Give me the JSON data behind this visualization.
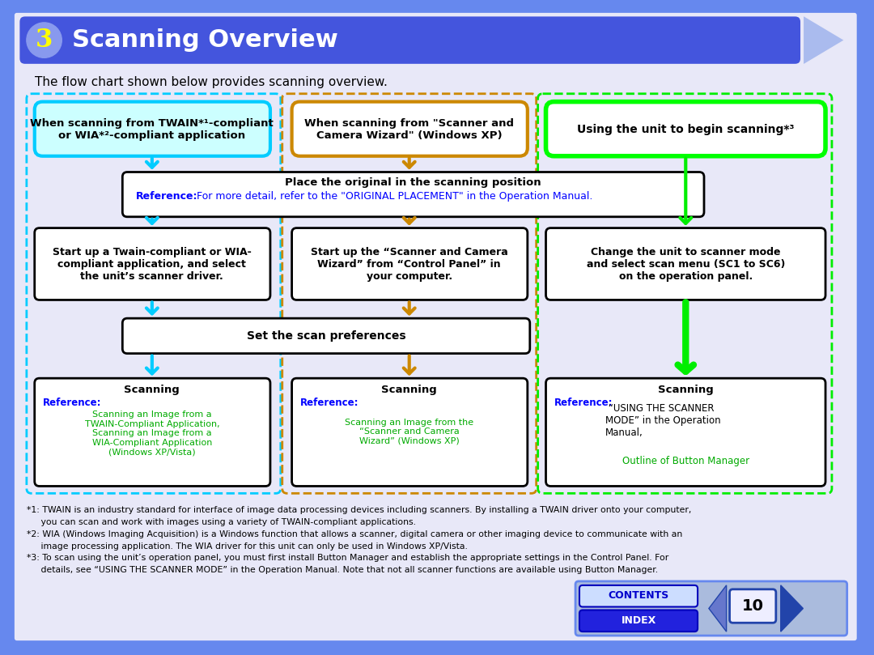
{
  "bg_color": "#6688ee",
  "page_bg": "#e8e8f8",
  "title_bar_color": "#4455dd",
  "title_text": "Scanning Overview",
  "title_number": "3",
  "title_number_color": "#ffff00",
  "title_text_color": "#ffffff",
  "subtitle": "The flow chart shown below provides scanning overview.",
  "subtitle_color": "#000000",
  "box1_text": "When scanning from TWAIN*¹-compliant\nor WIA*²-compliant application",
  "box1_border": "#00ccff",
  "box1_bg": "#ccffff",
  "box2_text": "When scanning from \"Scanner and\nCamera Wizard\" (Windows XP)",
  "box2_border": "#cc8800",
  "box2_bg": "#ffffff",
  "box3_text": "Using the unit to begin scanning*³",
  "box3_border": "#00ff00",
  "box3_bg": "#ffffff",
  "place_box_text1": "Place the original in the scanning position",
  "place_box_ref": "Reference:",
  "place_box_ref2": " For more detail, refer to the \"ORIGINAL PLACEMENT\" in the Operation Manual.",
  "place_box_border": "#000000",
  "place_box_bg": "#ffffff",
  "step1a_text": "Start up a Twain-compliant or WIA-\ncompliant application, and select\nthe unit’s scanner driver.",
  "step1a_border": "#000000",
  "step1a_bg": "#ffffff",
  "step2a_text": "Start up the “Scanner and Camera\nWizard” from “Control Panel” in\nyour computer.",
  "step2a_border": "#000000",
  "step2a_bg": "#ffffff",
  "step3a_text": "Change the unit to scanner mode\nand select scan menu (SC1 to SC6)\non the operation panel.",
  "step3a_border": "#000000",
  "step3a_bg": "#ffffff",
  "pref_box_text": "Set the scan preferences",
  "pref_box_border": "#000000",
  "pref_box_bg": "#ffffff",
  "scan1_title": "Scanning",
  "scan1_ref": "Reference:",
  "scan1_links": "Scanning an Image from a\nTWAIN-Compliant Application,\nScanning an Image from a\nWIA-Compliant Application\n(Windows XP/Vista)",
  "scan1_border": "#000000",
  "scan1_bg": "#ffffff",
  "scan2_title": "Scanning",
  "scan2_ref": "Reference:",
  "scan2_links": "Scanning an Image from the\n“Scanner and Camera\nWizard” (Windows XP)",
  "scan2_border": "#000000",
  "scan2_bg": "#ffffff",
  "scan3_title": "Scanning",
  "scan3_ref": "Reference:",
  "scan3_text": " “USING THE SCANNER\nMODE” in the Operation\nManual,",
  "scan3_link": "Outline of Button Manager",
  "scan3_border": "#000000",
  "scan3_bg": "#ffffff",
  "cyan_arrow": "#00ccff",
  "orange_arrow": "#cc8800",
  "green_arrow": "#00ee00",
  "footnote1": "*1: TWAIN is an industry standard for interface of image data processing devices including scanners. By installing a TWAIN driver onto your computer,",
  "footnote1b": "     you can scan and work with images using a variety of TWAIN-compliant applications.",
  "footnote2": "*2: WIA (Windows Imaging Acquisition) is a Windows function that allows a scanner, digital camera or other imaging device to communicate with an",
  "footnote2b": "     image processing application. The WIA driver for this unit can only be used in Windows XP/Vista.",
  "footnote3": "*3: To scan using the unit’s operation panel, you must first install Button Manager and establish the appropriate settings in the Control Panel. For",
  "footnote3b": "     details, see “USING THE SCANNER MODE” in the Operation Manual. Note that not all scanner functions are available using Button Manager.",
  "contents_text": "CONTENTS",
  "index_text": "INDEX",
  "page_number": "10",
  "ref_color": "#0000ff",
  "link_color": "#00aa00",
  "bold_color": "#000000"
}
